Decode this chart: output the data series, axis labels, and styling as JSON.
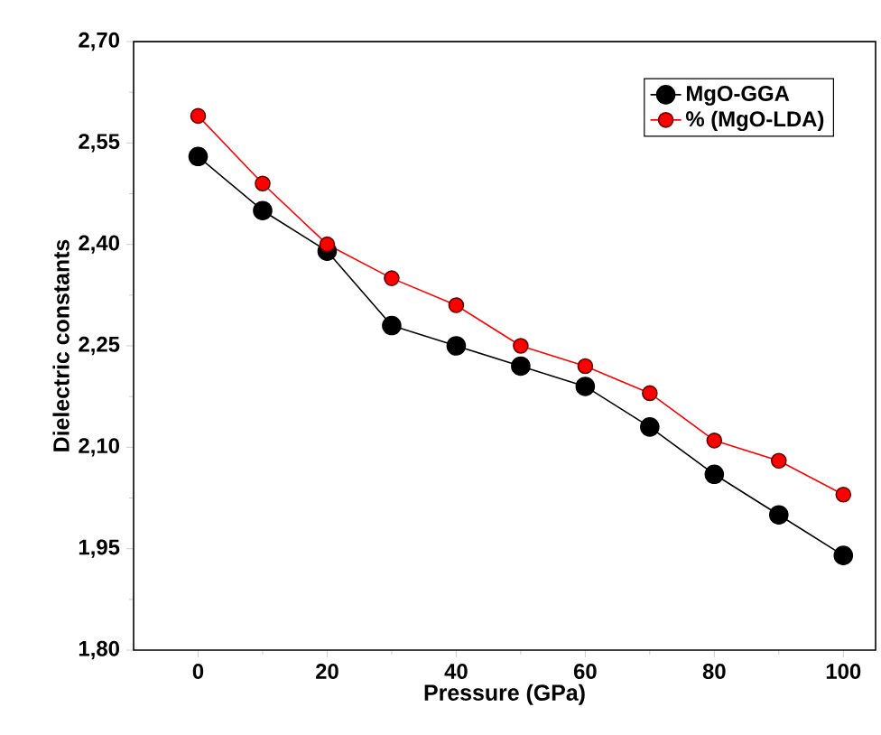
{
  "chart_data": {
    "type": "line",
    "xlabel": "Pressure (GPa)",
    "ylabel": "Dielectric constants",
    "x": [
      0,
      10,
      20,
      30,
      40,
      50,
      60,
      70,
      80,
      90,
      100
    ],
    "series": [
      {
        "name": "MgO-GGA",
        "color": "#000000",
        "values": [
          2.53,
          2.45,
          2.39,
          2.28,
          2.25,
          2.22,
          2.19,
          2.13,
          2.06,
          2.0,
          1.94
        ]
      },
      {
        "name": "% (MgO-LDA)",
        "color": "#ff0000",
        "values": [
          2.59,
          2.49,
          2.4,
          2.35,
          2.31,
          2.25,
          2.22,
          2.18,
          2.11,
          2.08,
          2.03
        ]
      }
    ],
    "xlim": [
      -10,
      105
    ],
    "xticks": [
      0,
      20,
      40,
      60,
      80,
      100
    ],
    "ylim": [
      1.8,
      2.7
    ],
    "yticks": [
      {
        "value": 1.8,
        "label": "1,80"
      },
      {
        "value": 1.95,
        "label": "1,95"
      },
      {
        "value": 2.1,
        "label": "2,10"
      },
      {
        "value": 2.25,
        "label": "2,25"
      },
      {
        "value": 2.4,
        "label": "2,40"
      },
      {
        "value": 2.55,
        "label": "2,55"
      },
      {
        "value": 2.7,
        "label": "2,70"
      }
    ],
    "legend": "top right",
    "marker": "circle",
    "line_style": "solid",
    "grid": false
  }
}
